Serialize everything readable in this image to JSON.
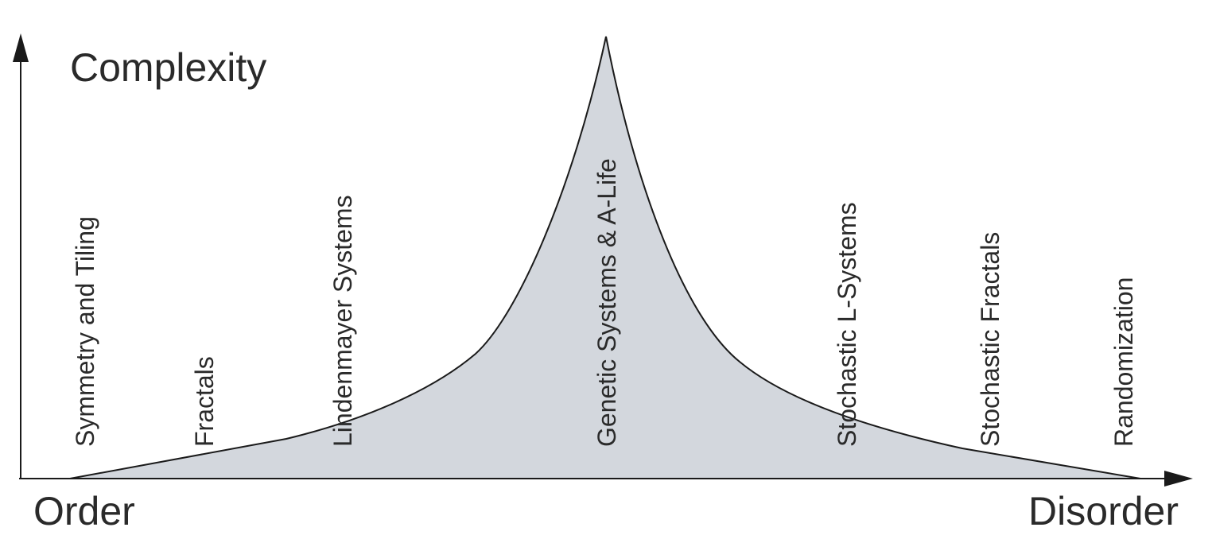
{
  "diagram": {
    "y_axis_title": "Complexity",
    "x_axis_start_label": "Order",
    "x_axis_end_label": "Disorder",
    "categories": [
      {
        "name": "symmetry-and-tiling",
        "label": "Symmetry and Tiling"
      },
      {
        "name": "fractals",
        "label": "Fractals"
      },
      {
        "name": "lindenmayer-systems",
        "label": "Lindenmayer Systems"
      },
      {
        "name": "genetic-systems-a-life",
        "label": "Genetic Systems & A-Life"
      },
      {
        "name": "stochastic-l-systems",
        "label": "Stochastic L-Systems"
      },
      {
        "name": "stochastic-fractals",
        "label": "Stochastic Fractals"
      },
      {
        "name": "randomization",
        "label": "Randomization"
      }
    ],
    "colors": {
      "area_fill": "#d3d7dd",
      "line": "#1a1a1a",
      "text": "#2a2a2a"
    }
  }
}
